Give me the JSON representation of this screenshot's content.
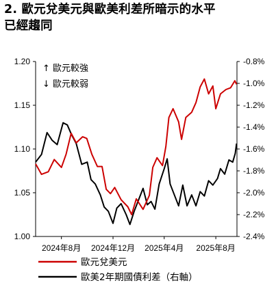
{
  "title": {
    "line1": "2. 歐元兌美元與歐美利差所暗示的水平",
    "line2": "已經趨同"
  },
  "chart_data": {
    "type": "line",
    "x_ticks": [
      "2024年8月",
      "2024年12月",
      "2025年4月",
      "2025年8月"
    ],
    "x_range": [
      "2024-06",
      "2025-09-20"
    ],
    "left_axis": {
      "ticks": [
        "1.20",
        "1.15",
        "1.10",
        "1.05",
        "1.00"
      ],
      "ylim": [
        1.0,
        1.2
      ]
    },
    "right_axis": {
      "ticks": [
        "-0.8%",
        "-1.0%",
        "-1.2%",
        "-1.4%",
        "-1.6%",
        "-1.8%",
        "-2.0%",
        "-2.2%",
        "-2.4%"
      ],
      "ylim": [
        -2.4,
        -0.8
      ]
    },
    "annotations": {
      "up": "↑ 歐元較強",
      "down": "↓ 歐元較弱"
    },
    "series": [
      {
        "name": "歐元兌美元",
        "axis": "left",
        "color": "#cc0000",
        "points": [
          [
            "2024-06-01",
            1.083
          ],
          [
            "2024-06-15",
            1.071
          ],
          [
            "2024-07-01",
            1.074
          ],
          [
            "2024-07-15",
            1.088
          ],
          [
            "2024-08-01",
            1.079
          ],
          [
            "2024-08-12",
            1.094
          ],
          [
            "2024-08-24",
            1.118
          ],
          [
            "2024-09-05",
            1.107
          ],
          [
            "2024-09-20",
            1.114
          ],
          [
            "2024-09-30",
            1.112
          ],
          [
            "2024-10-12",
            1.094
          ],
          [
            "2024-10-25",
            1.08
          ],
          [
            "2024-11-05",
            1.08
          ],
          [
            "2024-11-15",
            1.054
          ],
          [
            "2024-11-25",
            1.049
          ],
          [
            "2024-12-05",
            1.056
          ],
          [
            "2024-12-20",
            1.042
          ],
          [
            "2025-01-05",
            1.034
          ],
          [
            "2025-01-14",
            1.025
          ],
          [
            "2025-01-25",
            1.043
          ],
          [
            "2025-02-10",
            1.031
          ],
          [
            "2025-02-25",
            1.047
          ],
          [
            "2025-03-05",
            1.079
          ],
          [
            "2025-03-15",
            1.09
          ],
          [
            "2025-03-28",
            1.081
          ],
          [
            "2025-04-05",
            1.103
          ],
          [
            "2025-04-12",
            1.136
          ],
          [
            "2025-04-22",
            1.146
          ],
          [
            "2025-05-05",
            1.131
          ],
          [
            "2025-05-12",
            1.111
          ],
          [
            "2025-05-22",
            1.136
          ],
          [
            "2025-06-05",
            1.142
          ],
          [
            "2025-06-15",
            1.153
          ],
          [
            "2025-06-25",
            1.171
          ],
          [
            "2025-07-05",
            1.18
          ],
          [
            "2025-07-15",
            1.163
          ],
          [
            "2025-07-25",
            1.172
          ],
          [
            "2025-08-01",
            1.146
          ],
          [
            "2025-08-12",
            1.163
          ],
          [
            "2025-08-25",
            1.168
          ],
          [
            "2025-09-05",
            1.17
          ],
          [
            "2025-09-15",
            1.178
          ],
          [
            "2025-09-19",
            1.174
          ]
        ]
      },
      {
        "name": "歐美2年期國債利差（右軸）",
        "axis": "right",
        "color": "#000000",
        "points": [
          [
            "2024-06-01",
            -1.72
          ],
          [
            "2024-06-15",
            -1.65
          ],
          [
            "2024-06-28",
            -1.45
          ],
          [
            "2024-07-10",
            -1.52
          ],
          [
            "2024-07-22",
            -1.56
          ],
          [
            "2024-08-05",
            -1.36
          ],
          [
            "2024-08-15",
            -1.38
          ],
          [
            "2024-08-25",
            -1.47
          ],
          [
            "2024-09-05",
            -1.55
          ],
          [
            "2024-09-18",
            -1.74
          ],
          [
            "2024-10-01",
            -1.72
          ],
          [
            "2024-10-10",
            -1.88
          ],
          [
            "2024-10-20",
            -1.92
          ],
          [
            "2024-11-01",
            -2.02
          ],
          [
            "2024-11-10",
            -2.13
          ],
          [
            "2024-11-20",
            -2.17
          ],
          [
            "2024-12-01",
            -2.28
          ],
          [
            "2024-12-10",
            -2.14
          ],
          [
            "2024-12-20",
            -2.1
          ],
          [
            "2025-01-01",
            -2.2
          ],
          [
            "2025-01-10",
            -2.29
          ],
          [
            "2025-01-20",
            -2.17
          ],
          [
            "2025-02-01",
            -2.05
          ],
          [
            "2025-02-10",
            -1.96
          ],
          [
            "2025-02-20",
            -2.11
          ],
          [
            "2025-03-01",
            -2.08
          ],
          [
            "2025-03-10",
            -2.15
          ],
          [
            "2025-03-20",
            -1.92
          ],
          [
            "2025-04-01",
            -1.78
          ],
          [
            "2025-04-08",
            -1.69
          ],
          [
            "2025-04-15",
            -1.92
          ],
          [
            "2025-04-25",
            -2.02
          ],
          [
            "2025-05-05",
            -2.12
          ],
          [
            "2025-05-15",
            -1.93
          ],
          [
            "2025-05-25",
            -2.12
          ],
          [
            "2025-06-05",
            -2.02
          ],
          [
            "2025-06-15",
            -2.12
          ],
          [
            "2025-06-25",
            -1.99
          ],
          [
            "2025-07-05",
            -2.03
          ],
          [
            "2025-07-15",
            -1.89
          ],
          [
            "2025-07-25",
            -1.93
          ],
          [
            "2025-08-05",
            -1.87
          ],
          [
            "2025-08-12",
            -1.78
          ],
          [
            "2025-08-22",
            -1.83
          ],
          [
            "2025-09-01",
            -1.7
          ],
          [
            "2025-09-10",
            -1.72
          ],
          [
            "2025-09-16",
            -1.64
          ],
          [
            "2025-09-19",
            -1.55
          ]
        ]
      }
    ]
  }
}
